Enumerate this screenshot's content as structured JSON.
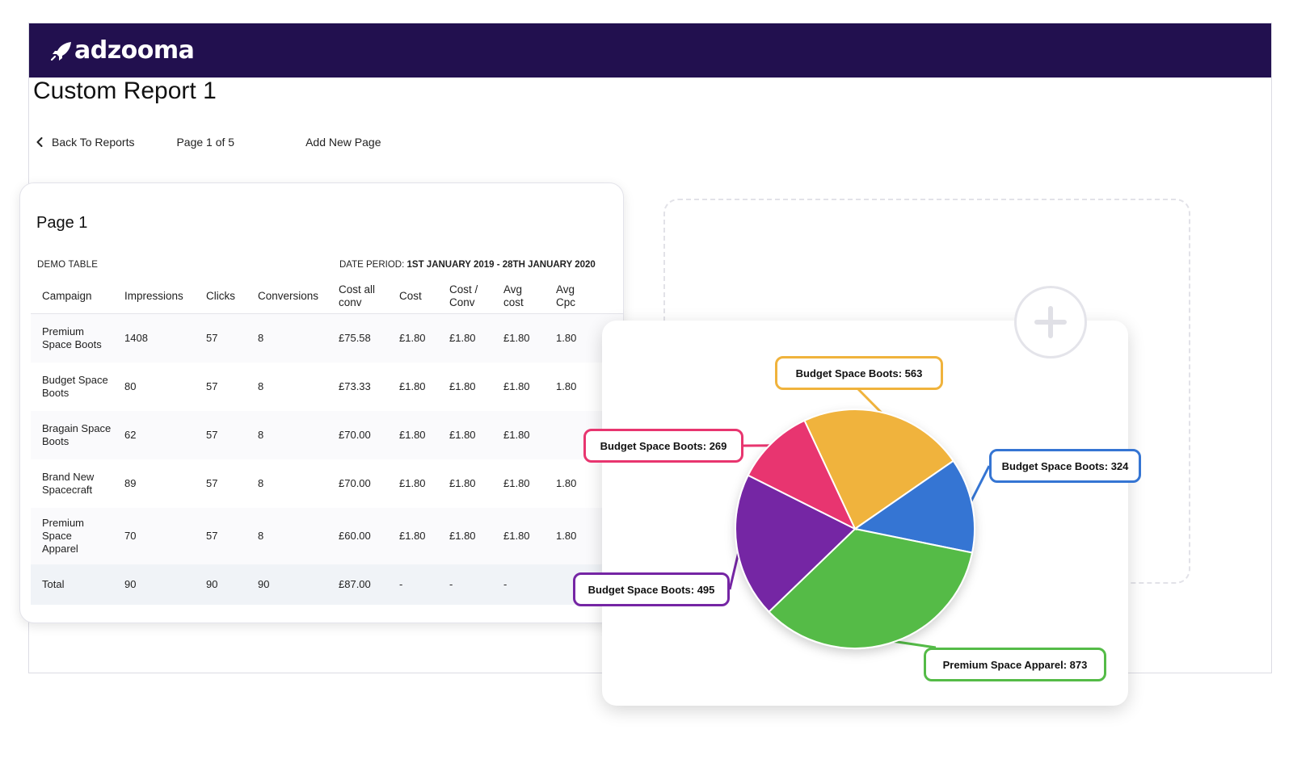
{
  "brand": {
    "name": "adzooma",
    "bar_color": "#22104f"
  },
  "page": {
    "title": "Custom Report 1",
    "back_label": "Back To Reports",
    "page_count": "Page 1 of 5",
    "add_page_label": "Add New Page"
  },
  "table_card": {
    "title": "Page 1",
    "table_label": "DEMO TABLE",
    "date_period_label": "DATE PERIOD:",
    "date_period_value": "1ST JANUARY 2019 - 28TH JANUARY  2020",
    "headers": [
      "Campaign",
      "Impressions",
      "Clicks",
      "Conversions",
      "Cost all conv",
      "Cost",
      "Cost / Conv",
      "Avg cost",
      "Avg Cpc"
    ],
    "rows": [
      {
        "campaign": "Premium Space Boots",
        "impressions": "1408",
        "clicks": "57",
        "conversions": "8",
        "cost_all_conv": "£75.58",
        "cost": "£1.80",
        "cost_per_conv": "£1.80",
        "avg_cost": "£1.80",
        "avg_cpc": "1.80"
      },
      {
        "campaign": "Budget Space Boots",
        "impressions": "80",
        "clicks": "57",
        "conversions": "8",
        "cost_all_conv": "£73.33",
        "cost": "£1.80",
        "cost_per_conv": "£1.80",
        "avg_cost": "£1.80",
        "avg_cpc": "1.80"
      },
      {
        "campaign": "Bragain Space Boots",
        "impressions": "62",
        "clicks": "57",
        "conversions": "8",
        "cost_all_conv": "£70.00",
        "cost": "£1.80",
        "cost_per_conv": "£1.80",
        "avg_cost": "£1.80",
        "avg_cpc": ""
      },
      {
        "campaign": "Brand New Spacecraft",
        "impressions": "89",
        "clicks": "57",
        "conversions": "8",
        "cost_all_conv": "£70.00",
        "cost": "£1.80",
        "cost_per_conv": "£1.80",
        "avg_cost": "£1.80",
        "avg_cpc": "1.80"
      },
      {
        "campaign": "Premium Space Apparel",
        "impressions": "70",
        "clicks": "57",
        "conversions": "8",
        "cost_all_conv": "£60.00",
        "cost": "£1.80",
        "cost_per_conv": "£1.80",
        "avg_cost": "£1.80",
        "avg_cpc": "1.80"
      }
    ],
    "total": {
      "label": "Total",
      "impressions": "90",
      "clicks": "90",
      "conversions": "90",
      "cost_all_conv": "£87.00",
      "cost": "-",
      "cost_per_conv": "-",
      "avg_cost": "-",
      "avg_cpc": ""
    }
  },
  "chart_data": {
    "type": "pie",
    "slices": [
      {
        "label": "Budget Space Boots: 563",
        "name": "Budget Space Boots",
        "value": 563,
        "color": "#f0b33c"
      },
      {
        "label": "Budget Space Boots: 324",
        "name": "Budget Space Boots",
        "value": 324,
        "color": "#3575d3"
      },
      {
        "label": "Premium Space Apparel: 873",
        "name": "Premium Space Apparel",
        "value": 873,
        "color": "#54bb47"
      },
      {
        "label": "Budget Space Boots: 495",
        "name": "Budget Space Boots",
        "value": 495,
        "color": "#7525a4"
      },
      {
        "label": "Budget Space Boots: 269",
        "name": "Budget Space Boots",
        "value": 269,
        "color": "#e8356f"
      }
    ]
  }
}
